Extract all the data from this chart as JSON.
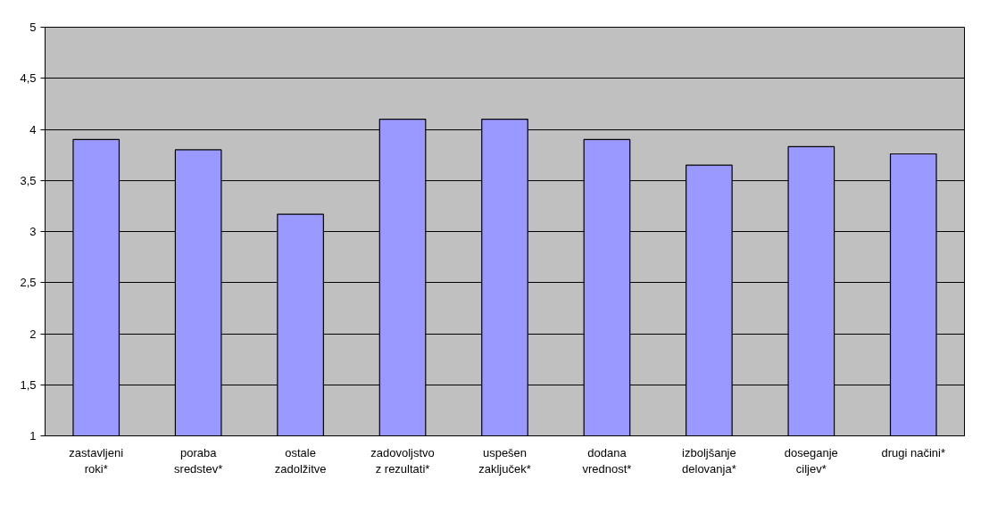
{
  "chart_data": {
    "type": "bar",
    "categories": [
      "zastavljeni roki*",
      "poraba sredstev*",
      "ostale zadolžitve",
      "zadovoljstvo z rezultati*",
      "uspešen zaključek*",
      "dodana vrednost*",
      "izboljšanje delovanja*",
      "doseganje ciljev*",
      "drugi načini*"
    ],
    "values": [
      3.9,
      3.8,
      3.17,
      4.1,
      4.1,
      3.9,
      3.65,
      3.83,
      3.76
    ],
    "color": "#9999ff",
    "ylim": [
      1,
      5
    ],
    "yticks": [
      1,
      {
        "value": 1.5,
        "label": "1,5"
      },
      2,
      {
        "value": 2.5,
        "label": "2,5"
      },
      3,
      {
        "value": 3.5,
        "label": "3,5"
      },
      4,
      {
        "value": 4.5,
        "label": "4,5"
      },
      5
    ],
    "grid": "y"
  }
}
